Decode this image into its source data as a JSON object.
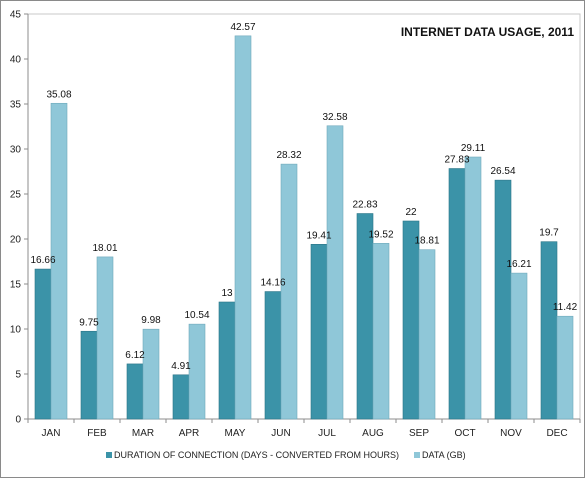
{
  "chart_data": {
    "type": "bar",
    "title": "INTERNET DATA USAGE, 2011",
    "categories": [
      "JAN",
      "FEB",
      "MAR",
      "APR",
      "MAY",
      "JUN",
      "JUL",
      "AUG",
      "SEP",
      "OCT",
      "NOV",
      "DEC"
    ],
    "series": [
      {
        "name": "DURATION OF CONNECTION (DAYS - CONVERTED FROM HOURS)",
        "color": "#3b93a8",
        "values": [
          16.66,
          9.75,
          6.12,
          4.91,
          13,
          14.16,
          19.41,
          22.83,
          22,
          27.83,
          26.54,
          19.7
        ],
        "labels": [
          "16.66",
          "9.75",
          "6.12",
          "4.91",
          "13",
          "14.16",
          "19.41",
          "22.83",
          "22",
          "27.83",
          "26.54",
          "19.7"
        ]
      },
      {
        "name": "DATA (GB)",
        "color": "#8fc7d8",
        "values": [
          35.08,
          18.01,
          9.98,
          10.54,
          42.57,
          28.32,
          32.58,
          19.52,
          18.81,
          29.11,
          16.21,
          11.42
        ],
        "labels": [
          "35.08",
          "18.01",
          "9.98",
          "10.54",
          "42.57",
          "28.32",
          "32.58",
          "19.52",
          "18.81",
          "29.11",
          "16.21",
          "11.42"
        ]
      }
    ],
    "ylim": [
      0,
      45
    ],
    "yticks": [
      "0",
      "5",
      "10",
      "15",
      "20",
      "25",
      "30",
      "35",
      "40",
      "45"
    ],
    "xlabel": "",
    "ylabel": "",
    "grid": false,
    "legend_position": "bottom"
  }
}
